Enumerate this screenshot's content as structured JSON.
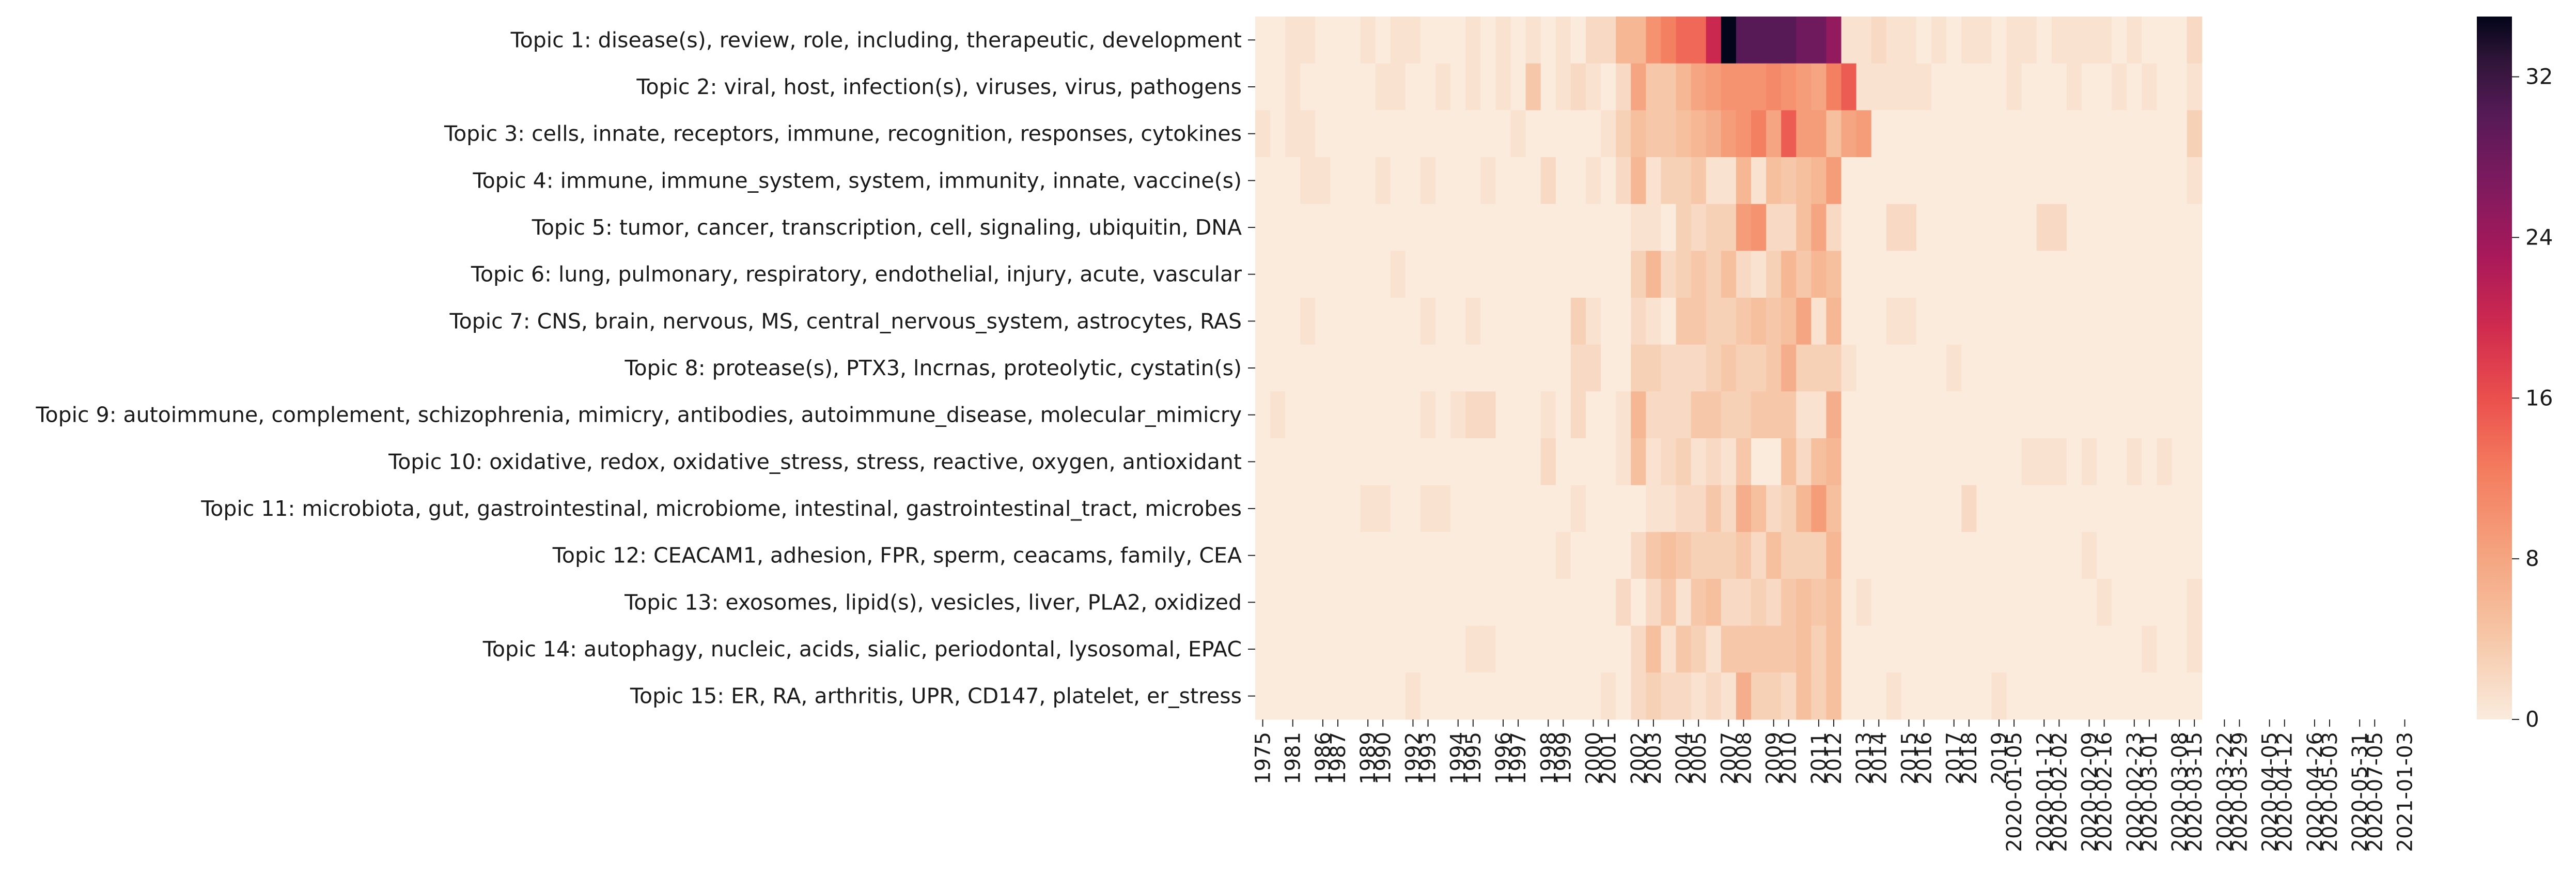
{
  "chart_data": {
    "type": "heatmap",
    "title": "",
    "xlabel": "",
    "ylabel": "",
    "colormap": "rocket_r",
    "colorbar_range": [
      0,
      35
    ],
    "colorbar_ticks": [
      0,
      8,
      16,
      24,
      32
    ],
    "colorbar_tick_labels": [
      "0",
      "8",
      "16",
      "24",
      "32"
    ],
    "columns": [
      "1975",
      "",
      "1981",
      "",
      "1986",
      "1987",
      "",
      "1989",
      "1990",
      "",
      "1992",
      "1993",
      "",
      "1994",
      "1995",
      "",
      "1996",
      "1997",
      "",
      "1998",
      "1999",
      "",
      "2000",
      "2001",
      "",
      "2002",
      "2003",
      "",
      "2004",
      "2005",
      "",
      "2007",
      "2008",
      "",
      "2009",
      "2010",
      "",
      "2011",
      "2012",
      "",
      "2013",
      "2014",
      "",
      "2015",
      "2016",
      "",
      "2017",
      "2018",
      "",
      "2019",
      "2020-01-05",
      "",
      "2020-01-12",
      "2020-02-02",
      "",
      "2020-02-09",
      "2020-02-16",
      "",
      "2020-02-23",
      "2020-03-01",
      "",
      "2020-03-08",
      "2020-03-15",
      "",
      "2020-03-22",
      "2020-03-29",
      "",
      "2020-04-05",
      "2020-04-12",
      "",
      "2020-04-26",
      "2020-05-03",
      "",
      "2020-05-31",
      "2020-07-05",
      "",
      "2021-01-03"
    ],
    "x_tick_labels": [
      "1975",
      "1981",
      "1986",
      "1987",
      "1989",
      "1990",
      "1992",
      "1993",
      "1994",
      "1995",
      "1996",
      "1997",
      "1998",
      "1999",
      "2000",
      "2001",
      "2002",
      "2003",
      "2004",
      "2005",
      "2007",
      "2008",
      "2009",
      "2010",
      "2011",
      "2012",
      "2013",
      "2014",
      "2015",
      "2016",
      "2017",
      "2018",
      "2019",
      "2020-01-05",
      "2020-01-12",
      "2020-02-02",
      "2020-02-09",
      "2020-02-16",
      "2020-02-23",
      "2020-03-01",
      "2020-03-08",
      "2020-03-15",
      "2020-03-22",
      "2020-03-29",
      "2020-04-05",
      "2020-04-12",
      "2020-04-26",
      "2020-05-03",
      "2020-05-31",
      "2020-07-05",
      "2021-01-03"
    ],
    "rows": [
      "Topic 1: disease(s), review, role, including, therapeutic, development",
      "Topic 2: viral, host, infection(s), viruses, virus, pathogens",
      "Topic 3: cells, innate, receptors, immune, recognition, responses, cytokines",
      "Topic 4: immune, immune_system, system, immunity, innate, vaccine(s)",
      "Topic 5: tumor, cancer, transcription, cell, signaling, ubiquitin, DNA",
      "Topic 6: lung, pulmonary, respiratory, endothelial, injury, acute, vascular",
      "Topic 7: CNS, brain, nervous, MS, central_nervous_system, astrocytes, RAS",
      "Topic 8: protease(s), PTX3, lncrnas, proteolytic, cystatin(s)",
      "Topic 9: autoimmune, complement, schizophrenia, mimicry, antibodies, autoimmune_disease, molecular_mimicry",
      "Topic 10: oxidative, redox, oxidative_stress, stress, reactive, oxygen, antioxidant",
      "Topic 11: microbiota, gut, gastrointestinal, microbiome, intestinal, gastrointestinal_tract, microbes",
      "Topic 12: CEACAM1, adhesion, FPR, sperm, ceacams, family, CEA",
      "Topic 13: exosomes, lipid(s), vesicles, liver, PLA2, oxidized",
      "Topic 14: autophagy, nucleic, acids, sialic, periodontal, lysosomal, EPAC",
      "Topic 15: ER, RA, arthritis, UPR, CD147, platelet, er_stress"
    ],
    "values": [
      [
        0,
        0,
        1,
        1,
        0,
        0,
        0,
        1,
        0,
        1,
        1,
        0,
        0,
        0,
        1,
        0,
        1,
        0,
        1,
        0,
        1,
        0,
        2,
        2,
        6,
        6,
        10,
        12,
        14,
        14,
        20,
        35,
        30,
        30,
        30,
        30,
        28,
        28,
        25,
        1,
        1,
        2,
        1,
        1,
        0,
        1,
        0,
        1,
        1,
        0,
        1,
        1,
        0,
        1,
        1,
        1,
        1,
        0,
        1,
        0,
        0,
        0,
        2
      ],
      [
        0,
        0,
        1,
        0,
        0,
        0,
        0,
        0,
        1,
        1,
        0,
        0,
        1,
        0,
        1,
        0,
        1,
        0,
        4,
        0,
        1,
        2,
        1,
        0,
        2,
        8,
        4,
        4,
        6,
        8,
        9,
        10,
        10,
        10,
        11,
        10,
        9,
        8,
        12,
        15,
        1,
        1,
        1,
        1,
        1,
        0,
        0,
        0,
        0,
        0,
        1,
        0,
        0,
        0,
        1,
        0,
        0,
        1,
        0,
        1,
        0,
        0,
        1
      ],
      [
        1,
        0,
        1,
        1,
        0,
        0,
        0,
        0,
        0,
        0,
        0,
        0,
        0,
        0,
        0,
        0,
        0,
        1,
        0,
        0,
        0,
        0,
        0,
        1,
        3,
        5,
        4,
        4,
        5,
        6,
        7,
        9,
        10,
        12,
        8,
        15,
        9,
        9,
        5,
        8,
        9,
        0,
        0,
        0,
        0,
        0,
        0,
        0,
        0,
        0,
        0,
        0,
        0,
        0,
        0,
        0,
        0,
        0,
        0,
        0,
        0,
        0,
        3
      ],
      [
        0,
        0,
        0,
        1,
        1,
        0,
        0,
        0,
        1,
        0,
        0,
        1,
        0,
        0,
        0,
        1,
        0,
        0,
        0,
        2,
        0,
        0,
        1,
        0,
        2,
        6,
        1,
        3,
        3,
        4,
        1,
        1,
        6,
        1,
        5,
        4,
        5,
        6,
        9,
        0,
        0,
        0,
        0,
        0,
        0,
        0,
        0,
        0,
        0,
        0,
        0,
        0,
        0,
        0,
        0,
        0,
        0,
        0,
        0,
        0,
        0,
        0,
        1
      ],
      [
        0,
        0,
        0,
        0,
        0,
        0,
        0,
        0,
        0,
        0,
        0,
        0,
        0,
        0,
        0,
        0,
        0,
        0,
        0,
        0,
        0,
        0,
        0,
        0,
        0,
        1,
        1,
        0,
        3,
        2,
        3,
        3,
        9,
        10,
        2,
        2,
        5,
        8,
        2,
        0,
        0,
        0,
        2,
        2,
        0,
        0,
        0,
        0,
        0,
        0,
        0,
        0,
        2,
        2,
        0,
        0,
        0,
        0,
        0,
        0,
        0,
        0,
        0
      ],
      [
        0,
        0,
        0,
        0,
        0,
        0,
        0,
        0,
        0,
        1,
        0,
        0,
        0,
        0,
        0,
        0,
        0,
        0,
        0,
        0,
        0,
        0,
        0,
        0,
        0,
        3,
        6,
        2,
        3,
        4,
        3,
        5,
        2,
        1,
        3,
        6,
        4,
        6,
        5,
        0,
        0,
        0,
        0,
        0,
        0,
        0,
        0,
        0,
        0,
        0,
        0,
        0,
        0,
        0,
        0,
        0,
        0,
        0,
        0,
        0,
        0,
        0,
        0
      ],
      [
        0,
        0,
        0,
        1,
        0,
        0,
        0,
        0,
        0,
        0,
        0,
        1,
        0,
        0,
        1,
        0,
        0,
        0,
        0,
        0,
        0,
        3,
        1,
        0,
        0,
        2,
        1,
        0,
        4,
        4,
        3,
        3,
        4,
        5,
        4,
        5,
        8,
        1,
        6,
        0,
        0,
        0,
        1,
        1,
        0,
        0,
        0,
        0,
        0,
        0,
        0,
        0,
        0,
        0,
        0,
        0,
        0,
        0,
        0,
        0,
        0,
        0,
        0
      ],
      [
        0,
        0,
        0,
        0,
        0,
        0,
        0,
        0,
        0,
        0,
        0,
        0,
        0,
        0,
        0,
        0,
        0,
        0,
        0,
        0,
        0,
        2,
        2,
        0,
        0,
        3,
        3,
        2,
        2,
        2,
        3,
        4,
        3,
        3,
        4,
        7,
        3,
        3,
        3,
        1,
        0,
        0,
        0,
        0,
        0,
        0,
        1,
        0,
        0,
        0,
        0,
        0,
        0,
        0,
        0,
        0,
        0,
        0,
        0,
        0,
        0,
        0,
        0
      ],
      [
        0,
        1,
        0,
        0,
        0,
        0,
        0,
        0,
        0,
        0,
        0,
        1,
        0,
        1,
        2,
        2,
        0,
        0,
        0,
        1,
        0,
        2,
        0,
        0,
        1,
        6,
        2,
        2,
        2,
        4,
        4,
        3,
        3,
        4,
        4,
        4,
        1,
        1,
        7,
        0,
        0,
        0,
        0,
        0,
        0,
        0,
        0,
        0,
        0,
        0,
        0,
        0,
        0,
        0,
        0,
        0,
        0,
        0,
        0,
        0,
        0,
        0,
        0
      ],
      [
        0,
        0,
        0,
        0,
        0,
        0,
        0,
        0,
        0,
        0,
        0,
        0,
        0,
        0,
        0,
        0,
        0,
        0,
        0,
        2,
        0,
        0,
        0,
        0,
        1,
        5,
        1,
        2,
        3,
        1,
        2,
        1,
        4,
        0,
        0,
        5,
        2,
        5,
        6,
        0,
        0,
        0,
        0,
        0,
        0,
        0,
        0,
        0,
        0,
        0,
        0,
        1,
        1,
        1,
        0,
        1,
        0,
        0,
        1,
        0,
        1,
        0,
        0
      ],
      [
        0,
        0,
        0,
        0,
        0,
        0,
        0,
        1,
        1,
        0,
        0,
        1,
        1,
        0,
        0,
        0,
        0,
        0,
        0,
        0,
        0,
        1,
        0,
        0,
        0,
        0,
        1,
        1,
        2,
        2,
        4,
        2,
        7,
        5,
        2,
        3,
        6,
        9,
        5,
        0,
        0,
        0,
        0,
        0,
        0,
        0,
        0,
        2,
        0,
        0,
        0,
        0,
        0,
        0,
        0,
        0,
        0,
        0,
        0,
        0,
        0,
        0,
        0
      ],
      [
        0,
        0,
        0,
        0,
        0,
        0,
        0,
        0,
        0,
        0,
        0,
        0,
        0,
        0,
        0,
        0,
        0,
        0,
        0,
        0,
        1,
        0,
        0,
        0,
        0,
        2,
        4,
        5,
        4,
        3,
        3,
        3,
        4,
        2,
        5,
        3,
        3,
        3,
        6,
        0,
        0,
        0,
        0,
        0,
        0,
        0,
        0,
        0,
        0,
        0,
        0,
        0,
        0,
        0,
        0,
        1,
        0,
        0,
        0,
        0,
        0,
        0,
        0
      ],
      [
        0,
        0,
        0,
        0,
        0,
        0,
        0,
        0,
        0,
        0,
        0,
        0,
        0,
        0,
        0,
        0,
        0,
        0,
        0,
        0,
        0,
        0,
        0,
        0,
        2,
        0,
        2,
        4,
        1,
        4,
        5,
        2,
        2,
        3,
        2,
        4,
        5,
        4,
        5,
        0,
        1,
        0,
        0,
        0,
        0,
        0,
        0,
        0,
        0,
        0,
        0,
        0,
        0,
        0,
        0,
        0,
        1,
        0,
        0,
        0,
        0,
        0,
        1
      ],
      [
        0,
        0,
        0,
        0,
        0,
        0,
        0,
        0,
        0,
        0,
        0,
        0,
        0,
        0,
        1,
        1,
        0,
        0,
        0,
        0,
        0,
        0,
        0,
        0,
        0,
        2,
        5,
        1,
        4,
        3,
        1,
        4,
        4,
        4,
        4,
        4,
        5,
        3,
        5,
        0,
        0,
        0,
        0,
        0,
        0,
        0,
        0,
        0,
        0,
        0,
        0,
        0,
        0,
        0,
        0,
        0,
        0,
        0,
        0,
        1,
        0,
        0,
        1
      ],
      [
        0,
        0,
        0,
        0,
        0,
        0,
        0,
        0,
        0,
        0,
        1,
        0,
        0,
        0,
        0,
        0,
        0,
        0,
        0,
        0,
        0,
        0,
        0,
        1,
        0,
        2,
        3,
        2,
        2,
        1,
        2,
        1,
        7,
        3,
        3,
        2,
        5,
        3,
        5,
        0,
        0,
        0,
        1,
        0,
        0,
        0,
        0,
        0,
        0,
        1,
        0,
        0,
        0,
        0,
        0,
        0,
        0,
        0,
        0,
        0,
        0,
        0,
        0
      ]
    ]
  }
}
